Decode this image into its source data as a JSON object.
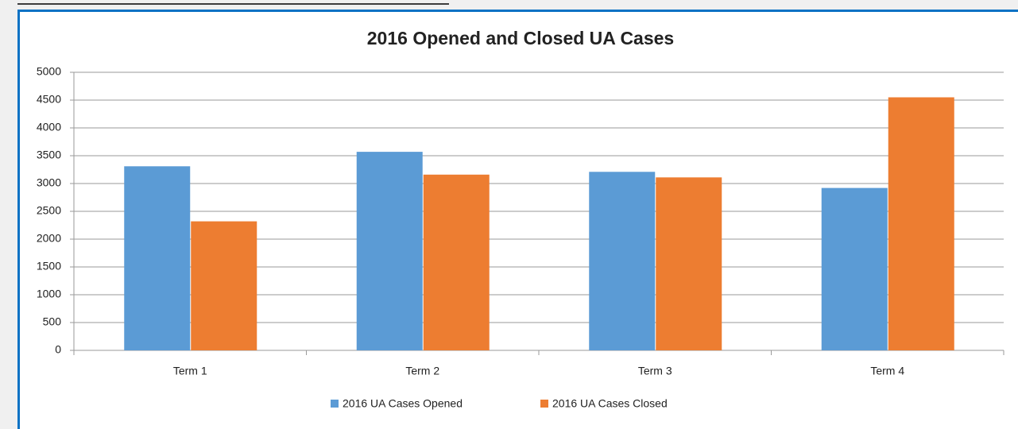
{
  "chart_data": {
    "type": "bar",
    "title": "2016 Opened and Closed UA Cases",
    "categories": [
      "Term 1",
      "Term 2",
      "Term 3",
      "Term 4"
    ],
    "series": [
      {
        "name": "2016 UA Cases Opened",
        "color": "#5b9bd5",
        "values": [
          3310,
          3570,
          3210,
          2920
        ]
      },
      {
        "name": "2016 UA Cases Closed",
        "color": "#ed7d31",
        "values": [
          2320,
          3160,
          3110,
          4550
        ]
      }
    ],
    "ylim": [
      0,
      5000
    ],
    "yticks": [
      0,
      500,
      1000,
      1500,
      2000,
      2500,
      3000,
      3500,
      4000,
      4500,
      5000
    ],
    "grid": true,
    "legend": "bottom"
  }
}
